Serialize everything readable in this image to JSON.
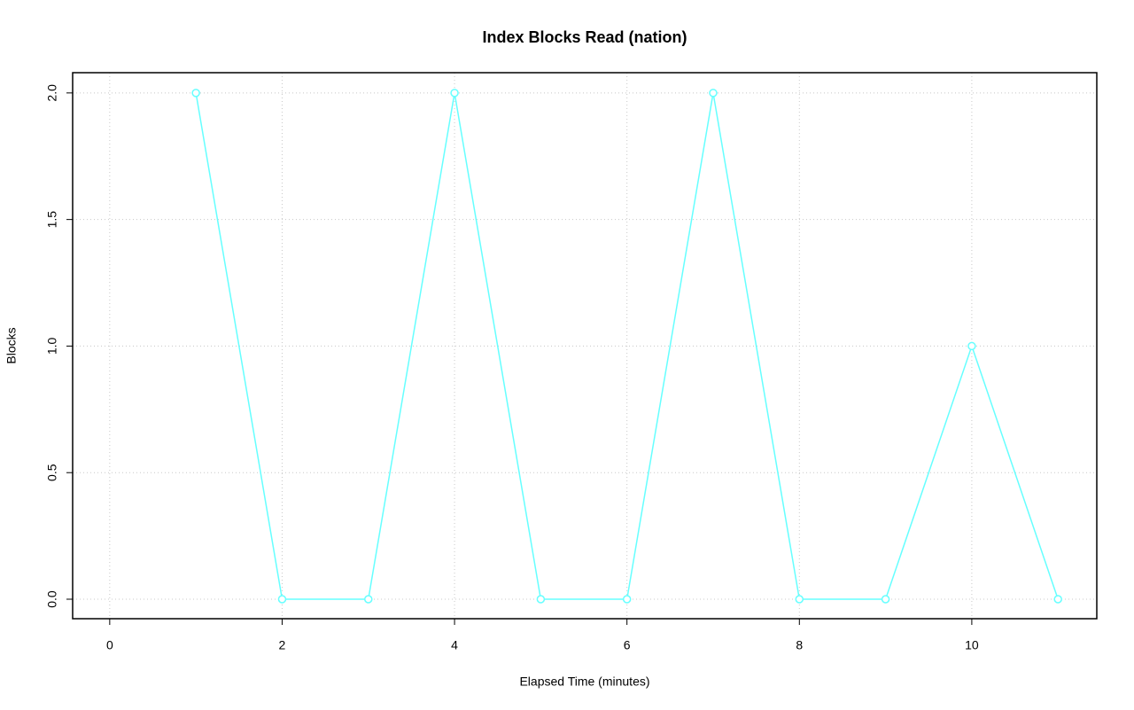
{
  "chart_data": {
    "type": "line",
    "title": "Index Blocks Read (nation)",
    "x_label": "Elapsed Time (minutes)",
    "y_label": "Blocks",
    "x": [
      1,
      2,
      3,
      4,
      5,
      6,
      7,
      8,
      9,
      10,
      11
    ],
    "series": [
      {
        "color": "#66ffff",
        "values": [
          2,
          0,
          0,
          2,
          0,
          0,
          2,
          0,
          0,
          1,
          0
        ]
      }
    ],
    "xlim": [
      -0.43,
      11.45
    ],
    "xticks": [
      0,
      2,
      4,
      6,
      8,
      10
    ],
    "ylim": [
      -0.077,
      2.08
    ],
    "yticks": [
      {
        "value": 0,
        "label": "0.0"
      },
      0.5,
      {
        "value": 1,
        "label": "1.0"
      },
      1.5,
      {
        "value": 2,
        "label": "2.0"
      }
    ],
    "grid": true
  }
}
